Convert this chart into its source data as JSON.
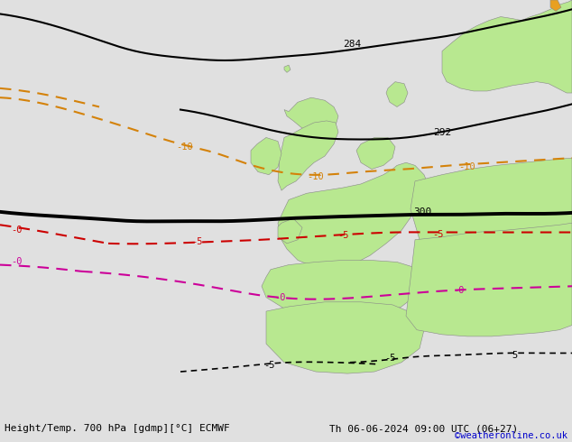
{
  "title_left": "Height/Temp. 700 hPa [gdmp][°C] ECMWF",
  "title_right": "Th 06-06-2024 09:00 UTC (06+27)",
  "copyright": "©weatheronline.co.uk",
  "bg_color": "#e0e0e0",
  "land_color": "#b8e890",
  "border_color": "#999999",
  "black_color": "#000000",
  "orange_color": "#d4820a",
  "red_color": "#cc0000",
  "magenta_color": "#cc0099",
  "copyright_color": "#0000cc",
  "figw": 6.34,
  "figh": 4.9,
  "dpi": 100
}
